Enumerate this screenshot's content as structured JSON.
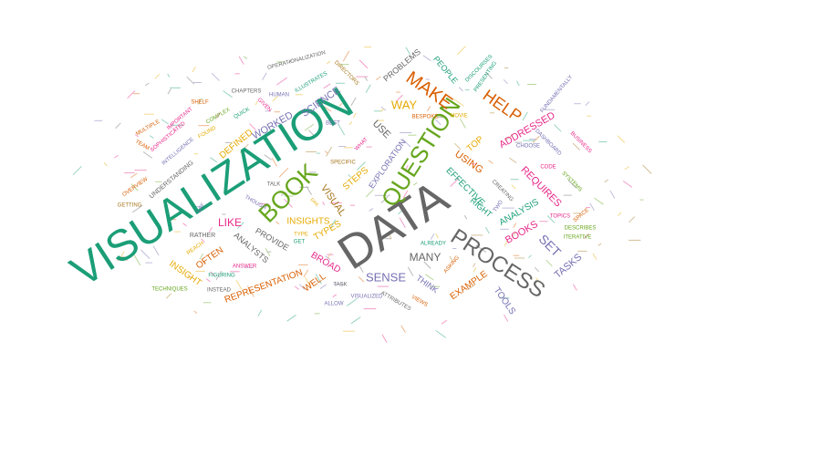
{
  "palette": {
    "green": "#1b9e77",
    "orange": "#d95f02",
    "purple": "#7570b3",
    "magenta": "#e7298a",
    "lime": "#66a61e",
    "gold": "#e6ab02",
    "brown": "#a6761d",
    "gray": "#666666"
  },
  "words": [
    {
      "text": "VISUALIZATION",
      "color": "green"
    },
    {
      "text": "DATA",
      "color": "gray"
    },
    {
      "text": "PROCESS",
      "color": "gray"
    },
    {
      "text": "QUESTION",
      "color": "lime"
    },
    {
      "text": "BOOK",
      "color": "lime"
    },
    {
      "text": "MAKE",
      "color": "orange"
    },
    {
      "text": "HELP",
      "color": "orange"
    },
    {
      "text": "SENSE",
      "color": "purple"
    },
    {
      "text": "ADDRESSED",
      "color": "magenta"
    },
    {
      "text": "REQUIRES",
      "color": "magenta"
    },
    {
      "text": "ANALYSIS",
      "color": "green"
    },
    {
      "text": "BOOKS",
      "color": "magenta"
    },
    {
      "text": "SET",
      "color": "purple"
    },
    {
      "text": "TASKS",
      "color": "purple"
    },
    {
      "text": "TOOLS",
      "color": "purple"
    },
    {
      "text": "EXAMPLE",
      "color": "orange"
    },
    {
      "text": "THINK",
      "color": "purple"
    },
    {
      "text": "MANY",
      "color": "gray"
    },
    {
      "text": "WELL",
      "color": "orange"
    },
    {
      "text": "BROAD",
      "color": "magenta"
    },
    {
      "text": "TYPES",
      "color": "gold"
    },
    {
      "text": "INSIGHTS",
      "color": "gold"
    },
    {
      "text": "VISUAL",
      "color": "brown"
    },
    {
      "text": "STEPS",
      "color": "gold"
    },
    {
      "text": "EXPLORATION",
      "color": "purple"
    },
    {
      "text": "EFFECTIVE",
      "color": "green"
    },
    {
      "text": "RIGHT",
      "color": "green"
    },
    {
      "text": "USING",
      "color": "orange"
    },
    {
      "text": "TOP",
      "color": "gold"
    },
    {
      "text": "USE",
      "color": "gray"
    },
    {
      "text": "WAY",
      "color": "gold"
    },
    {
      "text": "PROBLEMS",
      "color": "gray"
    },
    {
      "text": "PEOPLE",
      "color": "green"
    },
    {
      "text": "SCIENCE",
      "color": "purple"
    },
    {
      "text": "WORKED",
      "color": "purple"
    },
    {
      "text": "DEFINED",
      "color": "gold"
    },
    {
      "text": "LIKE",
      "color": "magenta"
    },
    {
      "text": "PROVIDE",
      "color": "gray"
    },
    {
      "text": "ANALYSTS",
      "color": "gray"
    },
    {
      "text": "OFTEN",
      "color": "orange"
    },
    {
      "text": "INSIGHT",
      "color": "gold"
    },
    {
      "text": "REPRESENTATION",
      "color": "orange"
    },
    {
      "text": "RATHER",
      "color": "gray"
    },
    {
      "text": "UNDERSTANDING",
      "color": "gray"
    },
    {
      "text": "INTELLIGENCE",
      "color": "purple"
    },
    {
      "text": "SOPHISTICATED",
      "color": "magenta"
    },
    {
      "text": "IMPORTANT",
      "color": "magenta"
    },
    {
      "text": "MULTIPLE",
      "color": "orange"
    },
    {
      "text": "TEAM",
      "color": "orange"
    },
    {
      "text": "OVERVIEW",
      "color": "orange"
    },
    {
      "text": "GETTING",
      "color": "brown"
    },
    {
      "text": "SHELF",
      "color": "orange"
    },
    {
      "text": "COMPLEX",
      "color": "lime"
    },
    {
      "text": "FOUND",
      "color": "gold"
    },
    {
      "text": "QUICK",
      "color": "green"
    },
    {
      "text": "GIVEN",
      "color": "magenta"
    },
    {
      "text": "CHAPTERS",
      "color": "gray"
    },
    {
      "text": "HUMAN",
      "color": "purple"
    },
    {
      "text": "ILLUSTRATES",
      "color": "green"
    },
    {
      "text": "OPERATIONALIZATION",
      "color": "gray"
    },
    {
      "text": "DIRECTORS",
      "color": "brown"
    },
    {
      "text": "BEST",
      "color": "purple"
    },
    {
      "text": "WHAT",
      "color": "magenta"
    },
    {
      "text": "SPECIFIC",
      "color": "brown"
    },
    {
      "text": "TALK",
      "color": "gray"
    },
    {
      "text": "THOUGH",
      "color": "purple"
    },
    {
      "text": "TYPE",
      "color": "gold"
    },
    {
      "text": "GET",
      "color": "green"
    },
    {
      "text": "DAIL",
      "color": "gold"
    },
    {
      "text": "TASK",
      "color": "gray"
    },
    {
      "text": "VISUALIZED",
      "color": "purple"
    },
    {
      "text": "ALLOW",
      "color": "purple"
    },
    {
      "text": "ATTRIBUTES",
      "color": "gray"
    },
    {
      "text": "VIEWS",
      "color": "orange"
    },
    {
      "text": "ASKING",
      "color": "orange"
    },
    {
      "text": "ALREADY",
      "color": "green"
    },
    {
      "text": "ANSWER",
      "color": "magenta"
    },
    {
      "text": "FIGURING",
      "color": "green"
    },
    {
      "text": "TECHNIQUES",
      "color": "lime"
    },
    {
      "text": "INSTEAD",
      "color": "gray"
    },
    {
      "text": "REACH",
      "color": "gold"
    },
    {
      "text": "LAY",
      "color": "purple"
    },
    {
      "text": "CREATING",
      "color": "gray"
    },
    {
      "text": "TWO",
      "color": "purple"
    },
    {
      "text": "TOPICS",
      "color": "magenta"
    },
    {
      "text": "DESCRIBES",
      "color": "lime"
    },
    {
      "text": "ITERATIVE",
      "color": "lime"
    },
    {
      "text": "SPACE",
      "color": "orange"
    },
    {
      "text": "SYSTEMS",
      "color": "lime"
    },
    {
      "text": "CODE",
      "color": "magenta"
    },
    {
      "text": "BUSINESS",
      "color": "magenta"
    },
    {
      "text": "DASHBOARD",
      "color": "purple"
    },
    {
      "text": "CHOOSE",
      "color": "purple"
    },
    {
      "text": "FUNDAMENTALLY",
      "color": "purple"
    },
    {
      "text": "MOVIE",
      "color": "gold"
    },
    {
      "text": "BESPOKE",
      "color": "orange"
    },
    {
      "text": "PRESENTING",
      "color": "green"
    },
    {
      "text": "DISCOURSES",
      "color": "green"
    }
  ]
}
